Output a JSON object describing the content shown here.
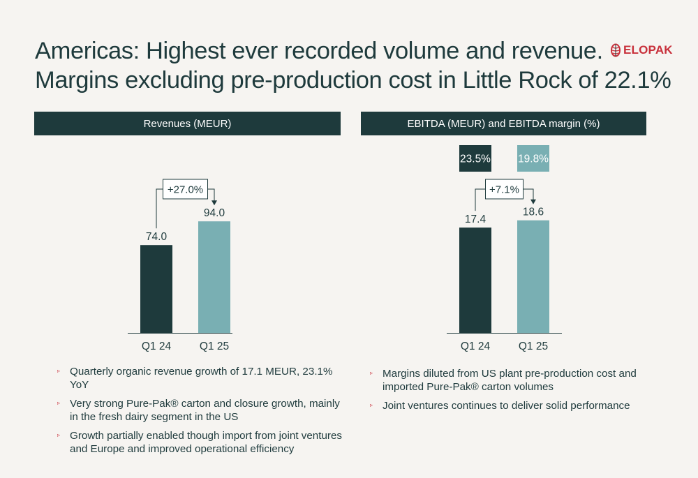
{
  "title_lines": [
    "Americas: Highest ever recorded volume and revenue.",
    "Margins excluding pre-production cost in Little Rock of 22.1%"
  ],
  "logo": {
    "text": "ELOPAK",
    "icon": "elopak-logo-icon",
    "color": "#c8303b"
  },
  "colors": {
    "dark": "#1e3a3c",
    "light": "#79afb3",
    "accent": "#c8303b",
    "background": "#f6f4f1"
  },
  "chart_data": [
    {
      "type": "bar",
      "title": "Revenues (MEUR)",
      "categories": [
        "Q1 24",
        "Q1 25"
      ],
      "values": [
        74.0,
        94.0
      ],
      "value_labels": [
        "74.0",
        "94.0"
      ],
      "change_label": "+27.0%",
      "bar_colors": [
        "#1e3a3c",
        "#79afb3"
      ],
      "ylim": [
        0,
        120
      ],
      "xlabel": "",
      "ylabel": ""
    },
    {
      "type": "bar",
      "title": "EBITDA (MEUR) and EBITDA margin (%)",
      "categories": [
        "Q1 24",
        "Q1 25"
      ],
      "values": [
        17.4,
        18.6
      ],
      "value_labels": [
        "17.4",
        "18.6"
      ],
      "margins": [
        "23.5%",
        "19.8%"
      ],
      "change_label": "+7.1%",
      "bar_colors": [
        "#1e3a3c",
        "#79afb3"
      ],
      "ylim": [
        0,
        23
      ],
      "xlabel": "",
      "ylabel": ""
    }
  ],
  "bullets_left": [
    "Quarterly organic revenue growth of 17.1 MEUR, 23.1% YoY",
    "Very strong Pure-Pak® carton and closure growth, mainly in the fresh dairy segment in the US",
    "Growth partially enabled though import from joint ventures and Europe and improved operational efficiency"
  ],
  "bullets_right": [
    "Margins diluted from US plant pre-production cost and imported Pure-Pak® carton volumes",
    "Joint ventures continues to deliver solid performance"
  ],
  "bullet_marker": "▹"
}
